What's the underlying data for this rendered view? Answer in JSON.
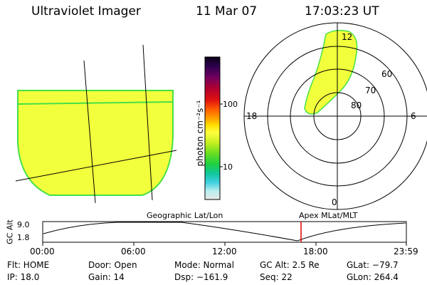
{
  "header": {
    "instrument": "Ultraviolet Imager",
    "date": "11 Mar 07",
    "time": "17:03:23 UT"
  },
  "colorbar": {
    "unit_label": "photon cm⁻²s⁻¹",
    "ticks": [
      "100",
      "10"
    ]
  },
  "polar_plot": {
    "mlt_labels": [
      "12",
      "18",
      "6",
      "0"
    ],
    "lat_labels": [
      "60",
      "70",
      "80"
    ]
  },
  "timeline": {
    "left_caption": "Geographic Lat/Lon",
    "right_caption": "Apex MLat/MLT",
    "y_axis_label": "GC Alt",
    "y_ticks": [
      "9.0",
      "1.8"
    ],
    "x_ticks": [
      "00:00",
      "06:00",
      "12:00",
      "18:00",
      "23:59"
    ]
  },
  "info": {
    "row1": [
      "Flt: HOME",
      "Door: Open",
      "Mode: Normal",
      "GC Alt: 2.5 Re",
      "GLat: −79.7"
    ],
    "row2": [
      "IP: 18.0",
      "Gain: 14",
      "Dsp: −161.9",
      "Seq: 22",
      "GLon: 264.4"
    ]
  },
  "colors": {
    "image_fill": "#f2ff3c",
    "image_border": "#46e046",
    "cursor": "#dd0000"
  }
}
